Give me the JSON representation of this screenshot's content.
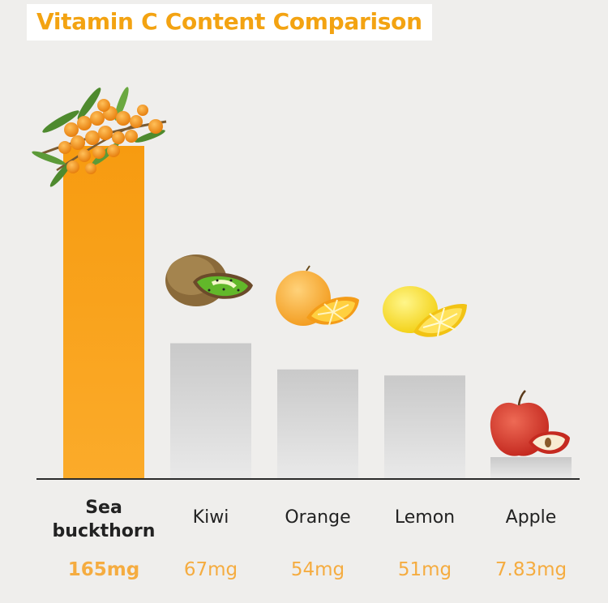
{
  "chart_data": {
    "type": "bar",
    "title": "Vitamin C Content Comparison",
    "categories": [
      "Sea buckthorn",
      "Kiwi",
      "Orange",
      "Lemon",
      "Apple"
    ],
    "category_lines": [
      [
        "Sea",
        "buckthorn"
      ],
      [
        "Kiwi"
      ],
      [
        "Orange"
      ],
      [
        "Lemon"
      ],
      [
        "Apple"
      ]
    ],
    "values": [
      165,
      67,
      54,
      51,
      7.83
    ],
    "value_labels": [
      "165mg",
      "67mg",
      "54mg",
      "51mg",
      "7.83mg"
    ],
    "icons": [
      "sea-buckthorn-icon",
      "kiwi-icon",
      "orange-icon",
      "lemon-icon",
      "apple-icon"
    ],
    "highlight_index": 0,
    "colors": {
      "highlight_bar": "#f9a31b",
      "bar": "#d3d3d3",
      "title": "#f3a312",
      "value": "#f5ac40"
    }
  }
}
